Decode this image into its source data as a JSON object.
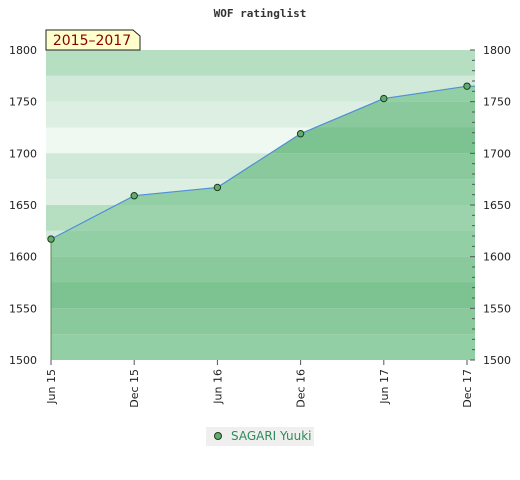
{
  "chart_data": {
    "type": "area",
    "title": "WOF ratinglist",
    "period_badge": "2015–2017",
    "ylim": [
      1500,
      1800
    ],
    "yticks": [
      "1500",
      "1550",
      "1600",
      "1650",
      "1700",
      "1750",
      "1800"
    ],
    "x": [
      "Jun 15",
      "Dec 15",
      "Jun 16",
      "Dec 16",
      "Jun 17",
      "Dec 17"
    ],
    "series": [
      {
        "name": "SAGARI Yuuki",
        "values": [
          1617,
          1659,
          1667,
          1719,
          1753,
          1765
        ]
      }
    ],
    "legend_position": "bottom-center",
    "grid": true,
    "colors": {
      "line": "#4f8fd6",
      "area": "#8ecb9c",
      "marker": "#5fae6e",
      "legend_text": "#2e8b57",
      "badge_bg": "#ffffcc",
      "badge_text": "#880000"
    }
  }
}
